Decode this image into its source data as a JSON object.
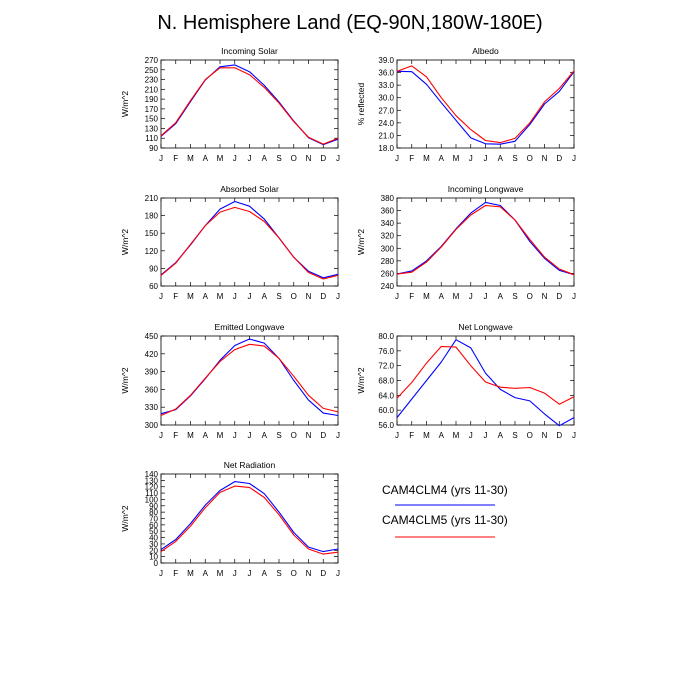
{
  "title": "N. Hemisphere Land (EQ-90N,180W-180E)",
  "colors": {
    "clm4": "#0000ff",
    "clm5": "#ff0000",
    "axis": "#000000"
  },
  "legend": [
    {
      "label": "CAM4CLM4 (yrs 11-30)",
      "color": "#0000ff"
    },
    {
      "label": "CAM4CLM5 (yrs 11-30)",
      "color": "#ff0000"
    }
  ],
  "chart_data": [
    {
      "type": "line",
      "title": "Incoming Solar",
      "ylabel": "W/m^2",
      "categories": [
        "J",
        "F",
        "M",
        "A",
        "M",
        "J",
        "J",
        "A",
        "S",
        "O",
        "N",
        "D",
        "J"
      ],
      "yticks": [
        90,
        110,
        130,
        150,
        170,
        190,
        210,
        230,
        250,
        270
      ],
      "ylim": [
        90,
        270
      ],
      "series": [
        {
          "name": "CAM4CLM4 (yrs 11-30)",
          "values": [
            114,
            140,
            185,
            229,
            256,
            260,
            246,
            218,
            184,
            145,
            111,
            97,
            108
          ]
        },
        {
          "name": "CAM4CLM5 (yrs 11-30)",
          "values": [
            115,
            142,
            187,
            230,
            254,
            254,
            240,
            214,
            182,
            144,
            112,
            98,
            110
          ]
        }
      ]
    },
    {
      "type": "line",
      "title": "Albedo",
      "ylabel": "% reflected",
      "categories": [
        "J",
        "F",
        "M",
        "A",
        "M",
        "J",
        "J",
        "A",
        "S",
        "O",
        "N",
        "D",
        "J"
      ],
      "yticks": [
        18.0,
        21.0,
        24.0,
        27.0,
        30.0,
        33.0,
        36.0,
        39.0
      ],
      "ylim": [
        18.0,
        39.0
      ],
      "series": [
        {
          "name": "CAM4CLM4 (yrs 11-30)",
          "values": [
            36.3,
            36.2,
            33.2,
            28.8,
            24.6,
            20.4,
            19.0,
            18.9,
            19.6,
            23.6,
            28.5,
            31.5,
            36.2
          ]
        },
        {
          "name": "CAM4CLM5 (yrs 11-30)",
          "values": [
            36.3,
            37.6,
            35.0,
            30.0,
            25.7,
            22.4,
            19.8,
            19.3,
            20.3,
            24.0,
            29.0,
            32.2,
            36.4
          ]
        }
      ]
    },
    {
      "type": "line",
      "title": "Absorbed Solar",
      "ylabel": "W/m^2",
      "categories": [
        "J",
        "F",
        "M",
        "A",
        "M",
        "J",
        "J",
        "A",
        "S",
        "O",
        "N",
        "D",
        "J"
      ],
      "yticks": [
        60,
        90,
        120,
        150,
        180,
        210
      ],
      "ylim": [
        60,
        210
      ],
      "series": [
        {
          "name": "CAM4CLM4 (yrs 11-30)",
          "values": [
            79,
            100,
            130,
            163,
            191,
            204,
            196,
            174,
            142,
            109,
            85,
            74,
            80
          ]
        },
        {
          "name": "CAM4CLM5 (yrs 11-30)",
          "values": [
            78,
            99,
            131,
            163,
            186,
            194,
            187,
            170,
            142,
            109,
            83,
            72,
            78
          ]
        }
      ]
    },
    {
      "type": "line",
      "title": "Incoming Longwave",
      "ylabel": "W/m^2",
      "categories": [
        "J",
        "F",
        "M",
        "A",
        "M",
        "J",
        "J",
        "A",
        "S",
        "O",
        "N",
        "D",
        "J"
      ],
      "yticks": [
        240,
        260,
        280,
        300,
        320,
        340,
        360,
        380
      ],
      "ylim": [
        240,
        380
      ],
      "series": [
        {
          "name": "CAM4CLM4 (yrs 11-30)",
          "values": [
            259,
            264,
            280,
            303,
            331,
            356,
            373,
            368,
            345,
            311,
            284,
            265,
            258
          ]
        },
        {
          "name": "CAM4CLM5 (yrs 11-30)",
          "values": [
            259,
            262,
            278,
            302,
            330,
            353,
            368,
            366,
            345,
            314,
            286,
            267,
            258
          ]
        }
      ]
    },
    {
      "type": "line",
      "title": "Emitted Longwave",
      "ylabel": "W/m^2",
      "categories": [
        "J",
        "F",
        "M",
        "A",
        "M",
        "J",
        "J",
        "A",
        "S",
        "O",
        "N",
        "D",
        "J"
      ],
      "yticks": [
        300,
        330,
        360,
        390,
        420,
        450
      ],
      "ylim": [
        300,
        450
      ],
      "series": [
        {
          "name": "CAM4CLM4 (yrs 11-30)",
          "values": [
            319,
            326,
            349,
            378,
            409,
            434,
            445,
            438,
            412,
            375,
            342,
            320,
            316
          ]
        },
        {
          "name": "CAM4CLM5 (yrs 11-30)",
          "values": [
            316,
            327,
            350,
            379,
            407,
            427,
            436,
            433,
            412,
            382,
            350,
            328,
            322
          ]
        }
      ]
    },
    {
      "type": "line",
      "title": "Net Longwave",
      "ylabel": "W/m^2",
      "categories": [
        "J",
        "F",
        "M",
        "A",
        "M",
        "J",
        "J",
        "A",
        "S",
        "O",
        "N",
        "D",
        "J"
      ],
      "yticks": [
        56.0,
        60.0,
        64.0,
        68.0,
        72.0,
        76.0,
        80.0
      ],
      "ylim": [
        56.0,
        80.0
      ],
      "series": [
        {
          "name": "CAM4CLM4 (yrs 11-30)",
          "values": [
            58.0,
            63.0,
            68.0,
            73.0,
            79.0,
            76.8,
            70.0,
            65.6,
            63.4,
            62.5,
            59.0,
            55.8,
            58.0
          ]
        },
        {
          "name": "CAM4CLM5 (yrs 11-30)",
          "values": [
            63.2,
            67.5,
            72.7,
            77.2,
            77.0,
            72.0,
            67.6,
            66.2,
            65.9,
            66.1,
            64.6,
            61.6,
            63.6
          ]
        }
      ]
    },
    {
      "type": "line",
      "title": "Net Radiation",
      "ylabel": "W/m^2",
      "categories": [
        "J",
        "F",
        "M",
        "A",
        "M",
        "J",
        "J",
        "A",
        "S",
        "O",
        "N",
        "D",
        "J"
      ],
      "yticks": [
        0,
        10,
        20,
        30,
        40,
        50,
        60,
        70,
        80,
        90,
        100,
        110,
        120,
        130,
        140
      ],
      "ylim": [
        0,
        140
      ],
      "series": [
        {
          "name": "CAM4CLM4 (yrs 11-30)",
          "values": [
            21,
            37,
            62,
            91,
            114,
            128,
            125,
            109,
            80,
            48,
            25,
            18,
            22
          ]
        },
        {
          "name": "CAM4CLM5 (yrs 11-30)",
          "values": [
            18,
            34,
            58,
            87,
            111,
            121,
            119,
            103,
            76,
            44,
            22,
            14,
            17
          ]
        }
      ]
    }
  ]
}
